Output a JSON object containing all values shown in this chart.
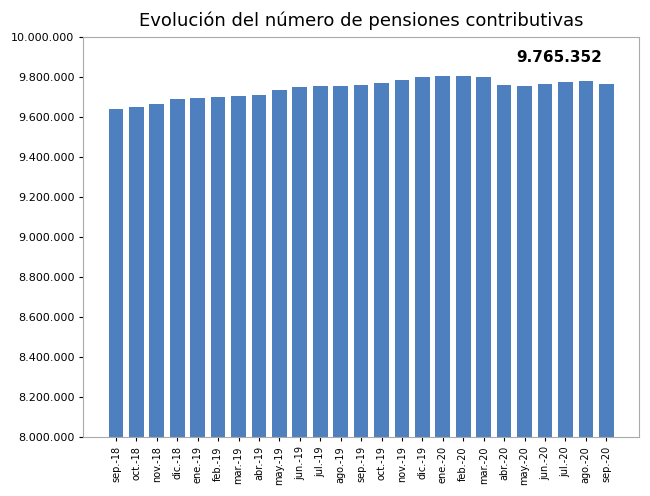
{
  "title": "Evolución del número de pensiones contributivas",
  "categories": [
    "sep.-18",
    "oct.-18",
    "nov.-18",
    "dic.-18",
    "ene.-19",
    "feb.-19",
    "mar.-19",
    "abr.-19",
    "may.-19",
    "jun.-19",
    "jul.-19",
    "ago.-19",
    "sep.-19",
    "oct.-19",
    "nov.-19",
    "dic.-19",
    "ene.-20",
    "feb.-20",
    "mar.-20",
    "abr.-20",
    "may.-20",
    "jun.-20",
    "jul.-20",
    "ago.-20",
    "sep.-20"
  ],
  "values": [
    9638000,
    9648000,
    9665000,
    9690000,
    9693000,
    9700000,
    9703000,
    9710000,
    9735000,
    9748000,
    9755000,
    9755000,
    9760000,
    9770000,
    9785000,
    9800000,
    9803000,
    9803000,
    9798000,
    9757000,
    9755000,
    9762000,
    9775000,
    9778000,
    9765352
  ],
  "last_value_label": "9.765.352",
  "bar_color": "#4E7FBF",
  "ylim_min": 8000000,
  "ylim_max": 10000000,
  "ytick_step": 200000,
  "background_color": "#ffffff",
  "plot_bg_color": "#ffffff",
  "border_color": "#b0b0b0",
  "title_fontsize": 13,
  "annotation_fontsize": 11,
  "tick_fontsize": 8,
  "xtick_fontsize": 7
}
